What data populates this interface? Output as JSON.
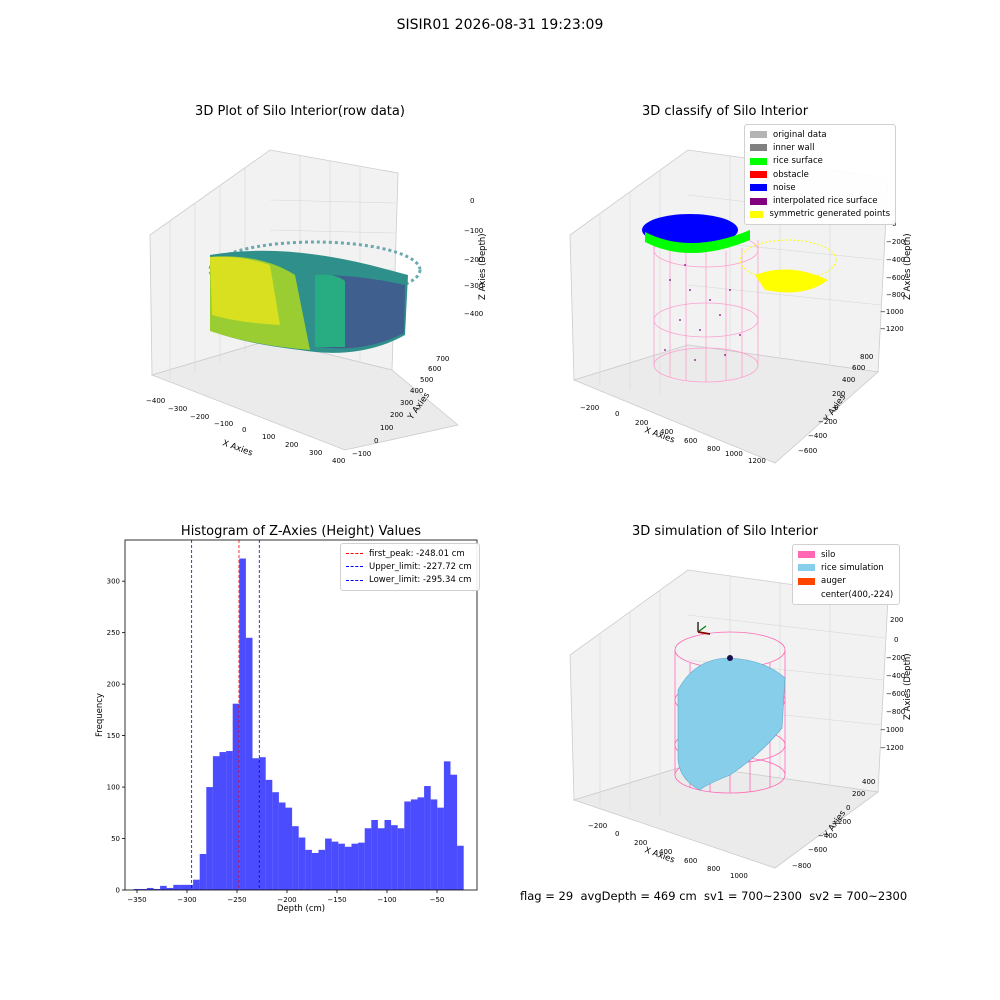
{
  "figure": {
    "suptitle": "SISIR01 2026-08-31 19:23:09",
    "footer": "flag = 29  avgDepth = 469 cm  sv1 = 700~2300  sv2 = 700~2300"
  },
  "panels": {
    "raw": {
      "title": "3D Plot of Silo Interior(row data)",
      "xlabel": "X Axies",
      "ylabel": "Y Axies",
      "zlabel": "Z Axies (Depth)",
      "xticks": [
        "−400",
        "−300",
        "−200",
        "−100",
        "0",
        "100",
        "200",
        "300",
        "400"
      ],
      "yticks": [
        "−100",
        "0",
        "100",
        "200",
        "300",
        "400",
        "500",
        "600",
        "700"
      ],
      "zticks": [
        "0",
        "−100",
        "−200",
        "−300",
        "−400"
      ]
    },
    "classify": {
      "title": "3D classify of Silo Interior",
      "xlabel": "X Axies",
      "ylabel": "Y Axies",
      "zlabel": "Z Axies (Depth)",
      "xticks": [
        "−200",
        "0",
        "200",
        "400",
        "600",
        "800",
        "1000",
        "1200"
      ],
      "yticks": [
        "−600",
        "−400",
        "−200",
        "0",
        "200",
        "400",
        "600",
        "800"
      ],
      "zticks": [
        "0",
        "−200",
        "−400",
        "−600",
        "−800",
        "−1000",
        "−1200"
      ],
      "legend": [
        {
          "label": "original data",
          "color": "#b3b3b3"
        },
        {
          "label": "inner wall",
          "color": "#808080"
        },
        {
          "label": "rice surface",
          "color": "#00ff00"
        },
        {
          "label": "obstacle",
          "color": "#ff0000"
        },
        {
          "label": "noise",
          "color": "#0000ff"
        },
        {
          "label": "interpolated rice surface",
          "color": "#800080"
        },
        {
          "label": "symmetric generated points",
          "color": "#ffff00"
        }
      ]
    },
    "simulation": {
      "title": "3D simulation of Silo Interior",
      "xlabel": "X Axies",
      "ylabel": "Y Axies",
      "zlabel": "Z Axies (Depth)",
      "xticks": [
        "−200",
        "0",
        "200",
        "400",
        "600",
        "800",
        "1000"
      ],
      "yticks": [
        "−800",
        "−600",
        "−400",
        "−200",
        "0",
        "200",
        "400"
      ],
      "zticks": [
        "200",
        "0",
        "−200",
        "−400",
        "−600",
        "−800",
        "−1000",
        "−1200"
      ],
      "legend": [
        {
          "label": "silo",
          "color": "#ff69b4"
        },
        {
          "label": "rice simulation",
          "color": "#87ceeb"
        },
        {
          "label": "auger",
          "color": "#ff4500"
        },
        {
          "label": "center(400,-224)",
          "color": ""
        }
      ]
    }
  },
  "chart_data": {
    "type": "bar",
    "title": "Histogram of Z-Axies (Height) Values",
    "xlabel": "Depth (cm)",
    "ylabel": "Frequency",
    "xlim": [
      -362,
      -10
    ],
    "ylim": [
      0,
      340
    ],
    "xticks": [
      -350,
      -300,
      -250,
      -200,
      -150,
      -100,
      -50
    ],
    "yticks": [
      0,
      50,
      100,
      150,
      200,
      250,
      300
    ],
    "bar_color": "#0000ff",
    "bin_width": 6.6,
    "bins_start": [
      -353.3,
      -346.7,
      -340.1,
      -333.5,
      -326.9,
      -320.3,
      -313.7,
      -307.1,
      -300.5,
      -293.9,
      -287.3,
      -280.7,
      -274.1,
      -267.5,
      -260.9,
      -254.3,
      -247.7,
      -241.1,
      -234.5,
      -227.9,
      -221.3,
      -214.7,
      -208.1,
      -201.5,
      -194.9,
      -188.3,
      -181.7,
      -175.1,
      -168.5,
      -161.9,
      -155.3,
      -148.7,
      -142.1,
      -135.5,
      -128.9,
      -122.3,
      -115.7,
      -109.1,
      -102.5,
      -95.9,
      -89.3,
      -82.7,
      -76.1,
      -69.5,
      -62.9,
      -56.3,
      -49.7,
      -43.1,
      -36.5,
      -29.9,
      -23.3
    ],
    "values": [
      1,
      1,
      2,
      1,
      4,
      2,
      5,
      5,
      5,
      10,
      35,
      100,
      130,
      134,
      135,
      181,
      322,
      245,
      128,
      129,
      107,
      95,
      85,
      80,
      62,
      51,
      39,
      36,
      39,
      50,
      47,
      45,
      42,
      45,
      46,
      60,
      68,
      60,
      68,
      63,
      60,
      86,
      88,
      90,
      101,
      88,
      80,
      125,
      112,
      43,
      0
    ],
    "vlines": [
      {
        "x": -248.01,
        "color": "#ff0000",
        "label": "first_peak: -248.01 cm"
      },
      {
        "x": -227.72,
        "color": "#0000ff",
        "label": "Upper_limit: -227.72 cm"
      },
      {
        "x": -295.34,
        "color": "#0000ff",
        "label": "Lower_limit: -295.34 cm"
      }
    ],
    "legend_position": "top-right"
  }
}
